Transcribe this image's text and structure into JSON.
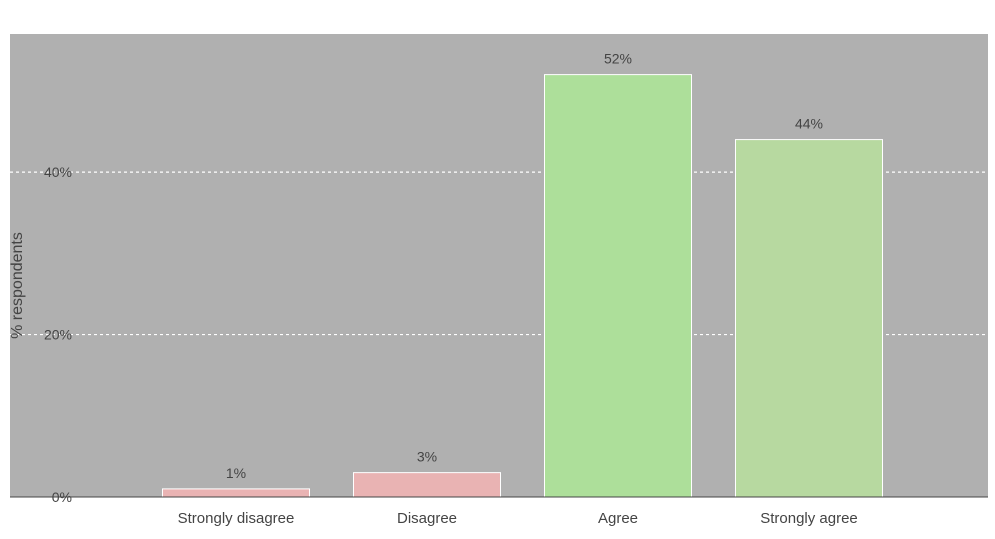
{
  "chart_data": {
    "type": "bar",
    "title": "",
    "xlabel": "",
    "ylabel": "% respondents",
    "categories": [
      "Strongly disagree",
      "Disagree",
      "Agree",
      "Strongly agree"
    ],
    "values": [
      1,
      3,
      52,
      44
    ],
    "value_labels": [
      "1%",
      "3%",
      "52%",
      "44%"
    ],
    "bar_colors": [
      "#e9b3b3",
      "#e9b3b3",
      "#addf9a",
      "#b7d9a0"
    ],
    "ylim": [
      0,
      57
    ],
    "yticks": [
      0,
      20,
      40
    ],
    "ytick_labels": [
      "0%",
      "20%",
      "40%"
    ],
    "grid": true,
    "legend": "none"
  },
  "colors": {
    "plot_background": "#b0b0b0",
    "grid": "#ffffff",
    "axis": "#444444",
    "text": "#444444"
  }
}
